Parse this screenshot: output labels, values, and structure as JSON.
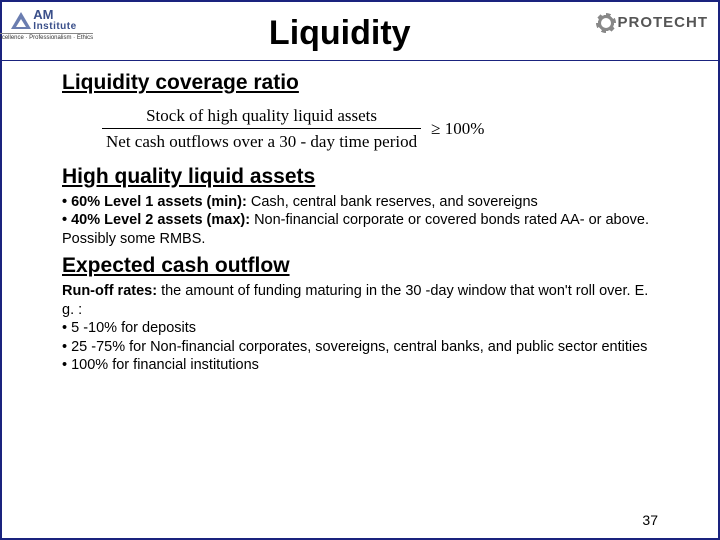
{
  "header": {
    "title": "Liquidity",
    "logo_left": {
      "line1": "AM",
      "line2": "Institute",
      "tagline": "Excellence · Professionalism · Ethics"
    },
    "logo_right": {
      "text": "PROTECHT"
    }
  },
  "sections": {
    "lcr": {
      "heading": "Liquidity coverage ratio"
    },
    "formula": {
      "numerator": "Stock of high quality liquid assets",
      "denominator": "Net cash outflows over a 30 - day time period",
      "rhs": "≥ 100%"
    },
    "hqla": {
      "heading": "High quality liquid assets",
      "bullet1_bold": "• 60% Level 1 assets (min):",
      "bullet1_rest": " Cash, central bank reserves, and sovereigns",
      "bullet2_bold": "• 40% Level 2 assets (max):",
      "bullet2_rest": " Non-financial corporate or covered bonds rated AA- or above. Possibly some RMBS."
    },
    "outflow": {
      "heading": "Expected cash outflow",
      "intro_bold": "Run-off rates:",
      "intro_rest": " the amount of funding maturing in the 30 -day window that won't roll over. E. g. :",
      "b1": "• 5 -10% for deposits",
      "b2": "• 25 -75% for Non-financial corporates, sovereigns, central banks, and public sector entities",
      "b3": "• 100% for financial institutions"
    }
  },
  "page_number": "37",
  "colors": {
    "border": "#1a237e",
    "text": "#000000",
    "logo_blue": "#3a4f8a"
  }
}
